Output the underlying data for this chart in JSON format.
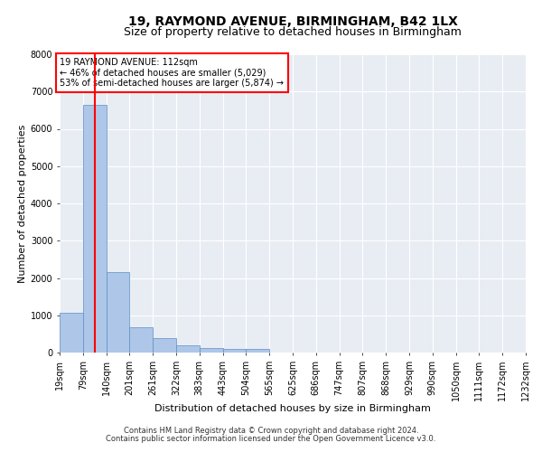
{
  "title1": "19, RAYMOND AVENUE, BIRMINGHAM, B42 1LX",
  "title2": "Size of property relative to detached houses in Birmingham",
  "xlabel": "Distribution of detached houses by size in Birmingham",
  "ylabel": "Number of detached properties",
  "footer1": "Contains HM Land Registry data © Crown copyright and database right 2024.",
  "footer2": "Contains public sector information licensed under the Open Government Licence v3.0.",
  "annotation_title": "19 RAYMOND AVENUE: 112sqm",
  "annotation_line2": "← 46% of detached houses are smaller (5,029)",
  "annotation_line3": "53% of semi-detached houses are larger (5,874) →",
  "property_size": 112,
  "bin_starts": [
    19,
    80,
    141,
    202,
    263,
    324,
    385,
    446,
    507,
    568,
    629,
    690,
    751,
    812,
    873,
    934,
    995,
    1056,
    1117,
    1178
  ],
  "bin_labels": [
    "19sqm",
    "79sqm",
    "140sqm",
    "201sqm",
    "261sqm",
    "322sqm",
    "383sqm",
    "443sqm",
    "504sqm",
    "565sqm",
    "625sqm",
    "686sqm",
    "747sqm",
    "807sqm",
    "868sqm",
    "929sqm",
    "990sqm",
    "1050sqm",
    "1111sqm",
    "1172sqm",
    "1232sqm"
  ],
  "bar_heights": [
    1070,
    6650,
    2150,
    680,
    380,
    200,
    130,
    90,
    100,
    0,
    0,
    0,
    0,
    0,
    0,
    0,
    0,
    0,
    0,
    0
  ],
  "bar_color": "#aec6e8",
  "bar_edge_color": "#5a8fc4",
  "vline_color": "#ff0000",
  "annotation_box_color": "#ff0000",
  "background_color": "#ffffff",
  "plot_bg_color": "#e8edf4",
  "grid_color": "#ffffff",
  "ylim": [
    0,
    8000
  ],
  "yticks": [
    0,
    1000,
    2000,
    3000,
    4000,
    5000,
    6000,
    7000,
    8000
  ],
  "title1_fontsize": 10,
  "title2_fontsize": 9,
  "xlabel_fontsize": 8,
  "ylabel_fontsize": 8,
  "tick_fontsize": 7,
  "annotation_fontsize": 7,
  "footer_fontsize": 6
}
